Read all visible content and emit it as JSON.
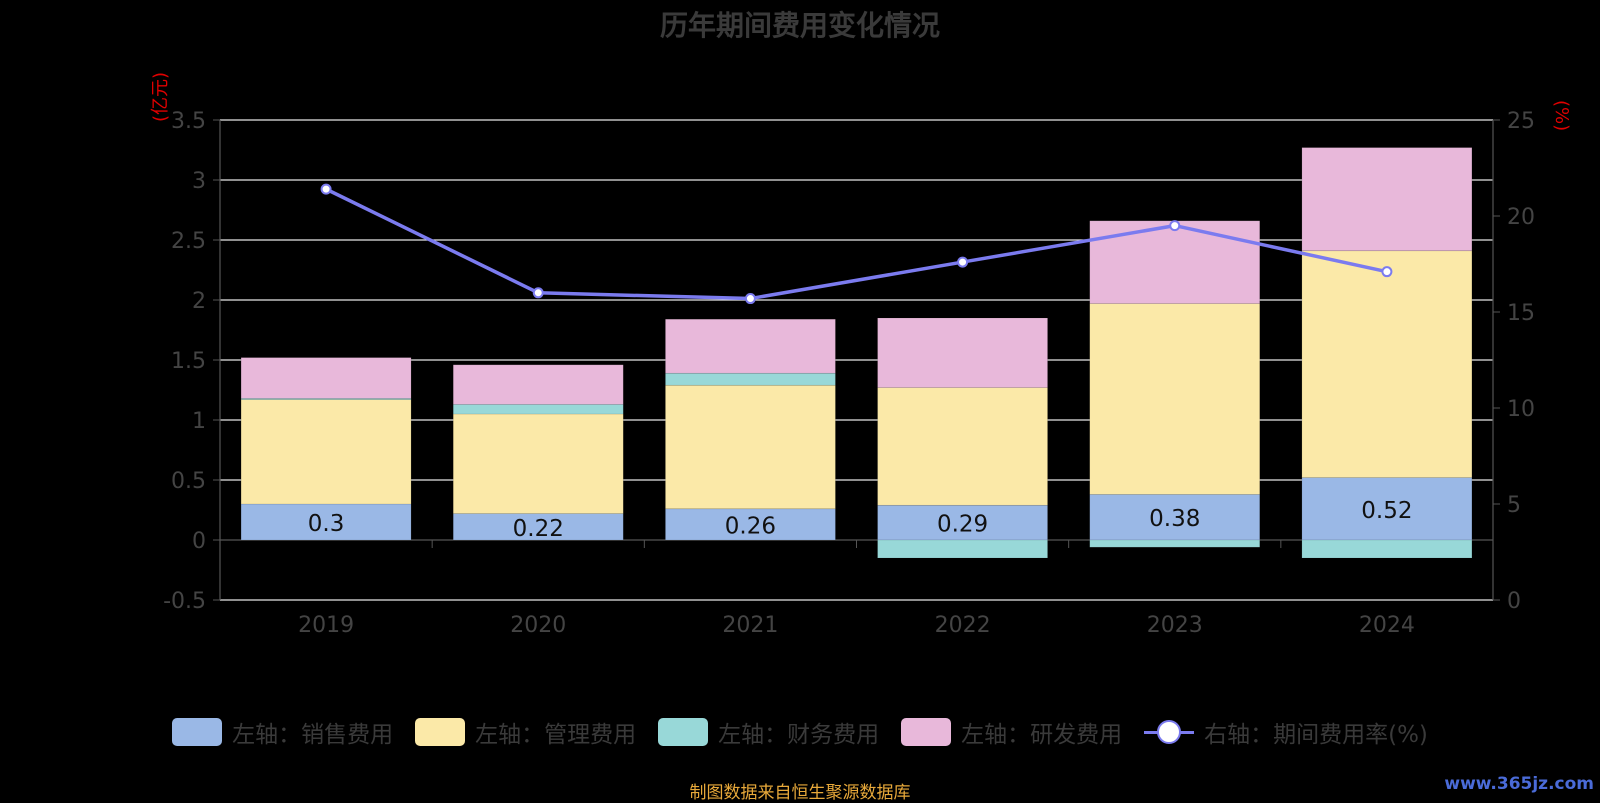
{
  "title": "历年期间费用变化情况",
  "unit_left": "(亿元)",
  "unit_right": "(%)",
  "source": "制图数据来自恒生聚源数据库",
  "watermark": "www.365jz.com",
  "colors": {
    "sales": "#9ab8e6",
    "admin": "#fbe9a8",
    "finance": "#98d8d8",
    "rd": "#e8b8da",
    "rate": "#7b7bef"
  },
  "legend": [
    {
      "label": "左轴：销售费用",
      "color": "#9ab8e6",
      "kind": "bar"
    },
    {
      "label": "左轴：管理费用",
      "color": "#fbe9a8",
      "kind": "bar"
    },
    {
      "label": "左轴：财务费用",
      "color": "#98d8d8",
      "kind": "bar"
    },
    {
      "label": "左轴：研发费用",
      "color": "#e8b8da",
      "kind": "bar"
    },
    {
      "label": "右轴：期间费用率(%)",
      "color": "#7b7bef",
      "kind": "line"
    }
  ],
  "chart_data": {
    "type": "bar",
    "stacked": true,
    "categories": [
      "2019",
      "2020",
      "2021",
      "2022",
      "2023",
      "2024"
    ],
    "series": [
      {
        "name": "左轴：销售费用",
        "axis": "left",
        "values": [
          0.3,
          0.22,
          0.26,
          0.29,
          0.38,
          0.52
        ],
        "labels": [
          "0.3",
          "0.22",
          "0.26",
          "0.29",
          "0.38",
          "0.52"
        ]
      },
      {
        "name": "左轴：管理费用",
        "axis": "left",
        "values": [
          0.87,
          0.83,
          1.03,
          0.98,
          1.59,
          1.89
        ]
      },
      {
        "name": "左轴：财务费用",
        "axis": "left",
        "values": [
          0.01,
          0.08,
          0.1,
          -0.15,
          -0.06,
          -0.15
        ]
      },
      {
        "name": "左轴：研发费用",
        "axis": "left",
        "values": [
          0.34,
          0.33,
          0.45,
          0.58,
          0.69,
          0.86
        ]
      },
      {
        "name": "右轴：期间费用率(%)",
        "axis": "right",
        "type": "line",
        "values": [
          21.4,
          16.0,
          15.7,
          17.6,
          19.5,
          17.1
        ]
      }
    ],
    "y_left": {
      "min": -0.5,
      "max": 3.5,
      "ticks": [
        "-0.5",
        "0",
        "0.5",
        "1",
        "1.5",
        "2",
        "2.5",
        "3",
        "3.5"
      ]
    },
    "y_right": {
      "min": 0,
      "max": 25,
      "ticks": [
        "0",
        "5",
        "10",
        "15",
        "20",
        "25"
      ]
    },
    "grid": true
  }
}
